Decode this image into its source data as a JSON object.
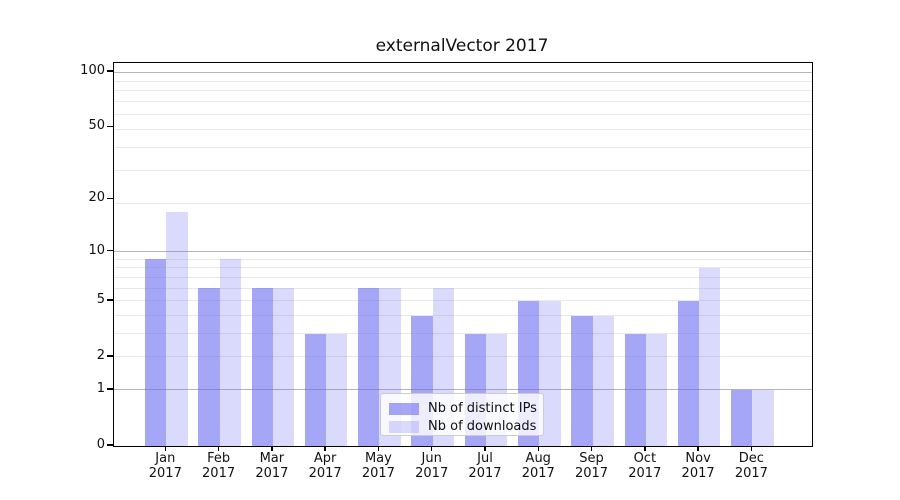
{
  "chart_data": {
    "type": "bar",
    "title": "externalVector 2017",
    "categories": [
      "Jan",
      "Feb",
      "Mar",
      "Apr",
      "May",
      "Jun",
      "Jul",
      "Aug",
      "Sep",
      "Oct",
      "Nov",
      "Dec"
    ],
    "xtick_year": "2017",
    "series": [
      {
        "name": "Nb of distinct IPs",
        "color": "rgba(107,107,242,0.60)",
        "values": [
          9,
          6,
          6,
          3,
          6,
          4,
          3,
          5,
          4,
          3,
          5,
          1
        ]
      },
      {
        "name": "Nb of downloads",
        "color": "rgba(107,107,242,0.25)",
        "values": [
          17,
          9,
          6,
          3,
          6,
          6,
          3,
          5,
          4,
          3,
          8,
          1
        ]
      }
    ],
    "y_scale": "log10(1+y)",
    "ylim": [
      0,
      112
    ],
    "yticks": [
      0,
      1,
      2,
      5,
      10,
      20,
      50,
      100
    ],
    "grid_major": [
      1,
      10,
      100
    ],
    "grid_minor": [
      2,
      3,
      4,
      5,
      6,
      7,
      8,
      9,
      19,
      29,
      39,
      49,
      59,
      69,
      79,
      89
    ],
    "legend_position": "lower center",
    "grid": "on",
    "colors": {
      "bar_dark": "#a6a6f7",
      "bar_light": "#dadafc",
      "grid_major": "#b5b5b5",
      "grid_minor": "#e8e8e8",
      "axis": "#000000"
    }
  }
}
